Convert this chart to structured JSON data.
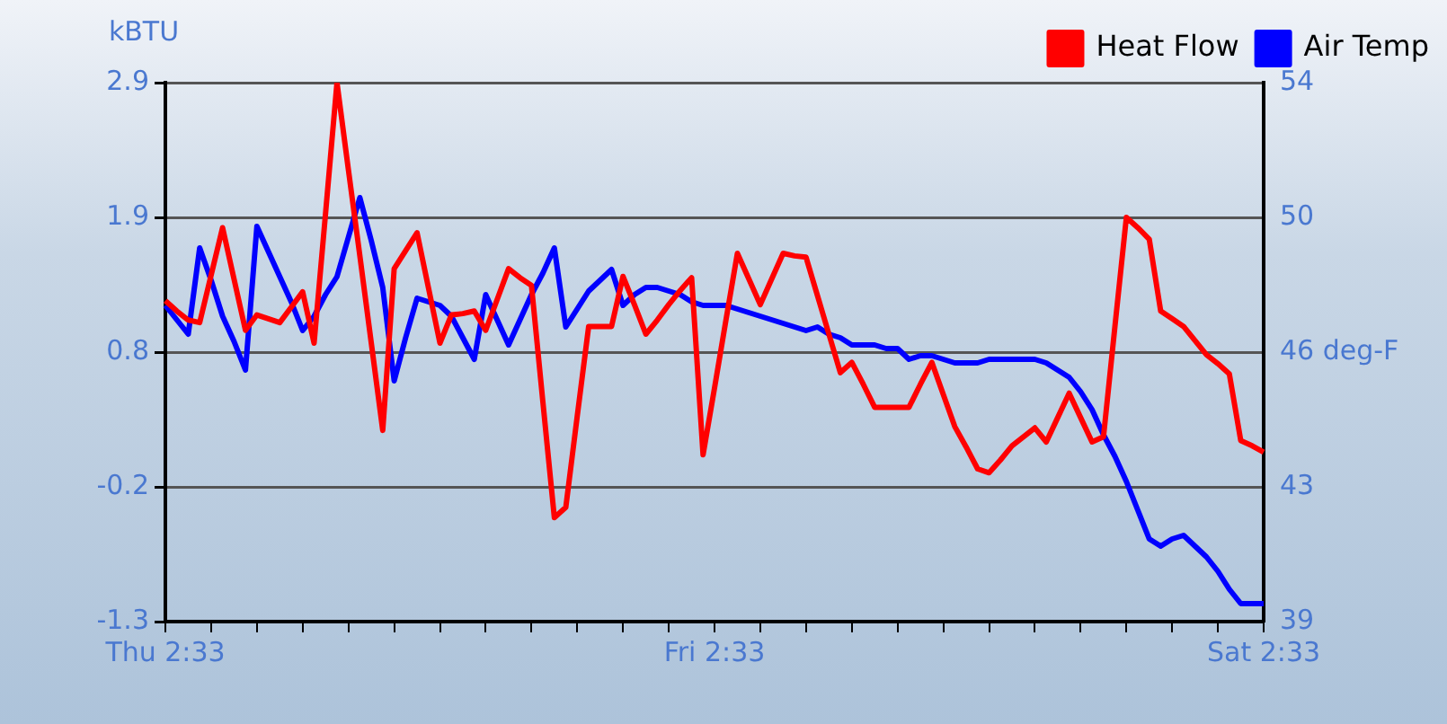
{
  "chart_data": {
    "type": "line",
    "ylabel": "kBTU",
    "categories": [
      "Thu 2:33",
      null,
      null,
      null,
      null,
      null,
      null,
      null,
      null,
      null,
      null,
      null,
      null,
      null,
      null,
      null,
      null,
      null,
      null,
      null,
      null,
      null,
      null,
      null,
      null,
      null,
      null,
      null,
      null,
      null,
      null,
      null,
      null,
      null,
      null,
      null,
      null,
      null,
      null,
      null,
      null,
      null,
      null,
      null,
      null,
      null,
      null,
      null,
      "Fri 2:33",
      null,
      null,
      null,
      null,
      null,
      null,
      null,
      null,
      null,
      null,
      null,
      null,
      null,
      null,
      null,
      null,
      null,
      null,
      null,
      null,
      null,
      null,
      null,
      null,
      null,
      null,
      null,
      null,
      null,
      null,
      null,
      null,
      null,
      null,
      null,
      null,
      null,
      null,
      null,
      null,
      null,
      null,
      null,
      null,
      null,
      null,
      null,
      "Sat 2:33"
    ],
    "ylim": [
      -1.3,
      2.9
    ],
    "yticks": [
      -1.3,
      {
        "value": -0.25,
        "label": "-0.2"
      },
      0.8,
      {
        "value": 1.85,
        "label": "1.9"
      },
      2.9
    ],
    "y2lim": [
      39,
      54
    ],
    "y2ticks": [
      39,
      {
        "value": 42.75,
        "label": "43"
      },
      {
        "value": 46.5,
        "label": "46 deg-F"
      },
      {
        "value": 50.25,
        "label": "50"
      },
      54
    ],
    "grid": "y",
    "legend": "top right",
    "marker": "none",
    "line_style": "solid",
    "series": [
      {
        "name": "Heat Flow",
        "color": "#ff0000",
        "values": [
          1.2,
          1.12,
          1.05,
          1.03,
          1.4,
          1.77,
          1.37,
          0.97,
          1.09,
          1.06,
          1.03,
          1.15,
          1.27,
          0.87,
          1.88,
          2.9,
          2.22,
          1.55,
          0.87,
          0.19,
          1.45,
          1.59,
          1.73,
          1.3,
          0.87,
          1.09,
          1.1,
          1.12,
          0.97,
          1.21,
          1.45,
          1.38,
          1.32,
          0.41,
          -0.49,
          -0.41,
          0.3,
          1.0,
          1.0,
          1.0,
          1.39,
          1.17,
          0.94,
          1.05,
          1.17,
          1.28,
          1.38,
          0.0,
          0.52,
          1.05,
          1.57,
          1.37,
          1.17,
          1.37,
          1.57,
          1.55,
          1.54,
          1.24,
          0.94,
          0.64,
          0.72,
          0.55,
          0.37,
          0.37,
          0.37,
          0.37,
          0.55,
          0.72,
          0.47,
          0.22,
          0.06,
          -0.11,
          -0.14,
          -0.04,
          0.07,
          0.14,
          0.21,
          0.1,
          0.29,
          0.48,
          0.29,
          0.1,
          0.14,
          1.0,
          1.85,
          1.77,
          1.68,
          1.12,
          1.06,
          1.0,
          0.89,
          0.78,
          0.71,
          0.63,
          0.11,
          0.07,
          0.02
        ]
      },
      {
        "name": "Air Temp",
        "color": "#0000ff",
        "axis": "y2",
        "values": [
          47.8,
          47.4,
          47.0,
          49.4,
          48.5,
          47.5,
          46.8,
          46.0,
          50.0,
          49.3,
          48.6,
          47.9,
          47.1,
          47.5,
          48.1,
          48.6,
          49.7,
          50.8,
          49.6,
          48.3,
          45.7,
          46.9,
          48.0,
          47.9,
          47.8,
          47.5,
          46.9,
          46.3,
          48.1,
          47.4,
          46.7,
          47.4,
          48.1,
          48.7,
          49.4,
          47.2,
          47.7,
          48.2,
          48.5,
          48.8,
          47.8,
          48.1,
          48.3,
          48.3,
          48.2,
          48.1,
          47.9,
          47.8,
          47.8,
          47.8,
          47.7,
          47.6,
          47.5,
          47.4,
          47.3,
          47.2,
          47.1,
          47.2,
          47.0,
          46.9,
          46.7,
          46.7,
          46.7,
          46.6,
          46.6,
          46.3,
          46.4,
          46.4,
          46.3,
          46.2,
          46.2,
          46.2,
          46.3,
          46.3,
          46.3,
          46.3,
          46.3,
          46.2,
          46.0,
          45.8,
          45.4,
          44.9,
          44.2,
          43.6,
          42.9,
          42.1,
          41.3,
          41.1,
          41.3,
          41.4,
          41.1,
          40.8,
          40.4,
          39.9,
          39.5,
          39.5,
          39.5
        ]
      }
    ]
  }
}
